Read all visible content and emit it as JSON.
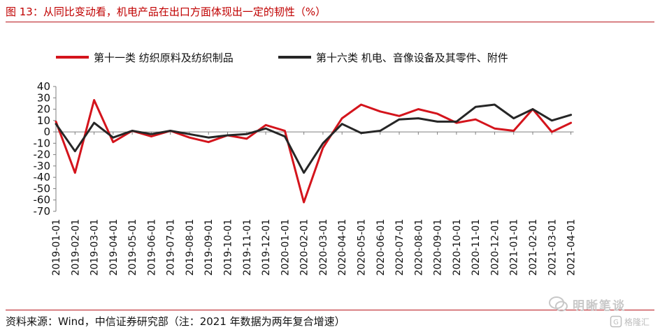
{
  "header": {
    "title": "图 13：从同比变动看，机电产品在出口方面体现出一定的韧性（%）"
  },
  "footer": {
    "source": "资料来源：Wind，中信证券研究部（注：2021 年数据为两年复合增速）"
  },
  "watermarks": {
    "primary_text": "明晰笔谈",
    "secondary_text": "格隆汇"
  },
  "colors": {
    "series_red": "#d4141c",
    "series_black": "#262626",
    "axis": "#7f7f7f",
    "rule": "#b8151c"
  },
  "chart_data": {
    "type": "line",
    "title": "",
    "xlabel": "",
    "ylabel": "",
    "ylim": [
      -70,
      40
    ],
    "yticks": [
      40,
      30,
      20,
      10,
      0,
      -10,
      -20,
      -30,
      -40,
      -50,
      -60,
      -70
    ],
    "grid": false,
    "legend_position": "top",
    "categories": [
      "2019-01-01",
      "2019-02-01",
      "2019-03-01",
      "2019-04-01",
      "2019-05-01",
      "2019-06-01",
      "2019-07-01",
      "2019-08-01",
      "2019-09-01",
      "2019-10-01",
      "2019-11-01",
      "2019-12-01",
      "2020-01-01",
      "2020-02-01",
      "2020-03-01",
      "2020-04-01",
      "2020-05-01",
      "2020-06-01",
      "2020-07-01",
      "2020-08-01",
      "2020-09-01",
      "2020-10-01",
      "2020-11-01",
      "2020-12-01",
      "2021-01-01",
      "2021-02-01",
      "2021-03-01",
      "2021-04-01"
    ],
    "series": [
      {
        "name": "第十一类 纺织原料及纺织制品",
        "color": "#d4141c",
        "values": [
          9,
          -36,
          28,
          -9,
          1,
          -4,
          1,
          -5,
          -9,
          -3,
          -6,
          6,
          1,
          -62,
          -14,
          12,
          24,
          18,
          14,
          20,
          16,
          8,
          11,
          3,
          1,
          20,
          0,
          8
        ]
      },
      {
        "name": "第十六类 机电、音像设备及其零件、附件",
        "color": "#262626",
        "values": [
          7,
          -17,
          8,
          -5,
          1,
          -2,
          1,
          -2,
          -5,
          -3,
          -2,
          3,
          -4,
          -36,
          -10,
          7,
          -1,
          1,
          11,
          12,
          9,
          9,
          22,
          24,
          12,
          20,
          10,
          15
        ]
      }
    ]
  }
}
